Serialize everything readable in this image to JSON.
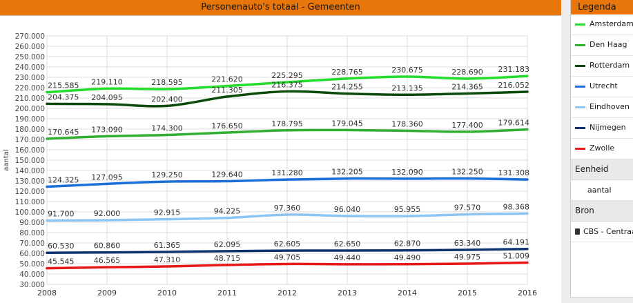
{
  "chart_data": {
    "type": "line",
    "title": "Personenauto's totaal - Gemeenten",
    "ylabel": "aantal",
    "xlabel": "",
    "ylim": [
      30000,
      270000
    ],
    "x": [
      "2008",
      "2009",
      "2010",
      "2011",
      "2012",
      "2013",
      "2014",
      "2015",
      "2016"
    ],
    "y_ticks": [
      "30.000",
      "40.000",
      "50.000",
      "60.000",
      "70.000",
      "80.000",
      "90.000",
      "100.000",
      "110.000",
      "120.000",
      "130.000",
      "140.000",
      "150.000",
      "160.000",
      "170.000",
      "180.000",
      "190.000",
      "200.000",
      "210.000",
      "220.000",
      "230.000",
      "240.000",
      "250.000",
      "260.000",
      "270.000"
    ],
    "grid": true,
    "legend_position": "right",
    "series": [
      {
        "name": "Amsterdam",
        "color": "#22dd2a",
        "values": [
          215585,
          219110,
          218595,
          221620,
          225295,
          228765,
          230675,
          228690,
          231183
        ],
        "labels": [
          "215.585",
          "219.110",
          "218.595",
          "221.620",
          "225.295",
          "228.765",
          "230.675",
          "228.690",
          "231.183"
        ]
      },
      {
        "name": "Den Haag",
        "color": "#30b030",
        "values": [
          170645,
          173090,
          174300,
          176650,
          178795,
          179045,
          178360,
          177400,
          179614
        ],
        "labels": [
          "170.645",
          "173.090",
          "174.300",
          "176.650",
          "178.795",
          "179.045",
          "178.360",
          "177.400",
          "179.614"
        ]
      },
      {
        "name": "Rotterdam",
        "color": "#0b4a0b",
        "values": [
          204375,
          204095,
          202400,
          211305,
          216375,
          214255,
          213135,
          214365,
          216052
        ],
        "labels": [
          "204.375",
          "204.095",
          "202.400",
          "211.305",
          "216.375",
          "214.255",
          "213.135",
          "214.365",
          "216.052"
        ]
      },
      {
        "name": "Utrecht",
        "color": "#1a70d8",
        "values": [
          124325,
          127095,
          129250,
          129640,
          131280,
          132205,
          132090,
          132250,
          131308
        ],
        "labels": [
          "124.325",
          "127.095",
          "129.250",
          "129.640",
          "131.280",
          "132.205",
          "132.090",
          "132.250",
          "131.308"
        ]
      },
      {
        "name": "Eindhoven",
        "color": "#8cc4f2",
        "values": [
          91700,
          92000,
          92915,
          94225,
          97360,
          96040,
          95955,
          97570,
          98368
        ],
        "labels": [
          "91.700",
          "92.000",
          "92.915",
          "94.225",
          "97.360",
          "96.040",
          "95.955",
          "97.570",
          "98.368"
        ]
      },
      {
        "name": "Nijmegen",
        "color": "#0d3470",
        "values": [
          60530,
          60860,
          61365,
          62095,
          62605,
          62650,
          62870,
          63340,
          64191
        ],
        "labels": [
          "60.530",
          "60.860",
          "61.365",
          "62.095",
          "62.605",
          "62.650",
          "62.870",
          "63.340",
          "64.191"
        ]
      },
      {
        "name": "Zwolle",
        "color": "#e81818",
        "values": [
          45545,
          46565,
          47310,
          48715,
          49705,
          49440,
          49490,
          49975,
          51009
        ],
        "labels": [
          "45.545",
          "46.565",
          "47.310",
          "48.715",
          "49.705",
          "49.440",
          "49.490",
          "49.975",
          "51.009"
        ]
      }
    ]
  },
  "legend": {
    "title": "Legenda",
    "eenheid_label": "Eenheid",
    "eenheid_value": "aantal",
    "bron_label": "Bron",
    "bron_value": "CBS - Centraal Bureau voor de Statistiek"
  }
}
